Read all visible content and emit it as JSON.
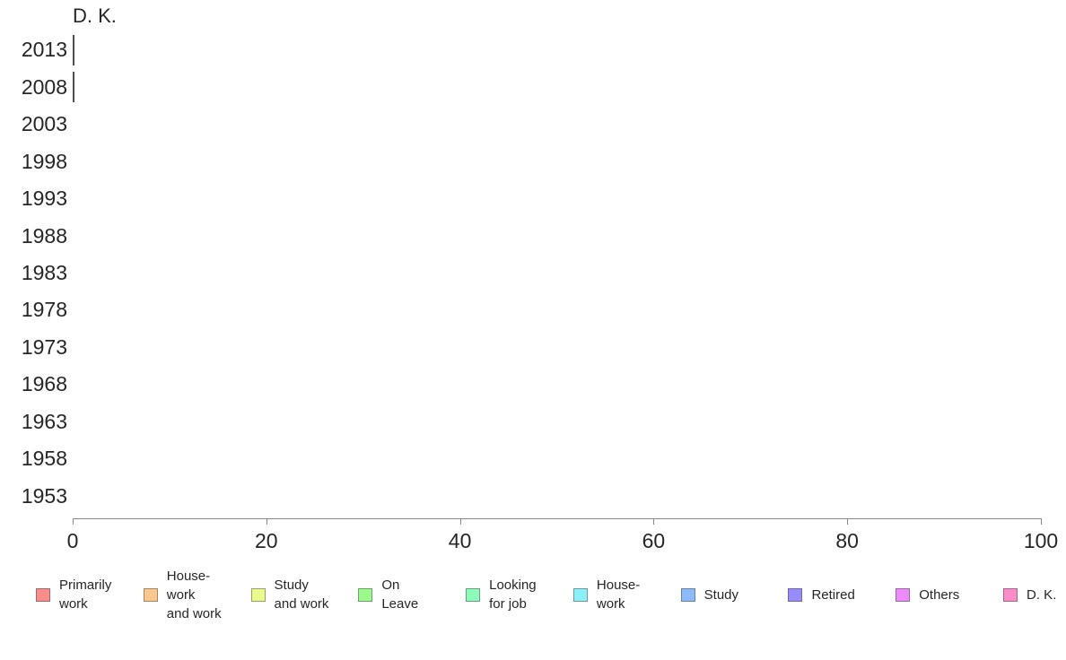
{
  "page": {
    "background": "#ffffff"
  },
  "chart_data": {
    "type": "bar",
    "orientation": "horizontal",
    "title": "D. K.",
    "categories": [
      "2013",
      "2008",
      "2003",
      "1998",
      "1993",
      "1988",
      "1983",
      "1978",
      "1973",
      "1968",
      "1963",
      "1958",
      "1953"
    ],
    "values": [
      0.1,
      0.1,
      0,
      0,
      0,
      0,
      0,
      0,
      0,
      0,
      0,
      0,
      0
    ],
    "xlabel": "",
    "ylabel": "",
    "xlim": [
      0,
      100
    ],
    "xticks": [
      "0",
      "20",
      "40",
      "60",
      "80",
      "100"
    ],
    "grid": false,
    "legend_position": "bottom",
    "bar_fill_color": "#fa8cc8",
    "bar_outline_color": "#4d4d4d",
    "axis_line_color": "#888888",
    "text_color": "#262626",
    "legend": [
      {
        "label": "Primarily work",
        "display": "Primarily\nwork",
        "color": "#fa8c8c"
      },
      {
        "label": "House-work and work",
        "display": "House-\nwork\nand work",
        "color": "#fac88c"
      },
      {
        "label": "Study and work",
        "display": "Study\nand work",
        "color": "#ebfa8c"
      },
      {
        "label": "On Leave",
        "display": "On\nLeave",
        "color": "#9bfa8c"
      },
      {
        "label": "Looking for job",
        "display": "Looking\nfor job",
        "color": "#8cfab9"
      },
      {
        "label": "House-work",
        "display": "House-\nwork",
        "color": "#8cf0fa"
      },
      {
        "label": "Study",
        "display": "Study",
        "color": "#8cbafa"
      },
      {
        "label": "Retired",
        "display": "Retired",
        "color": "#968cfa"
      },
      {
        "label": "Others",
        "display": "Others",
        "color": "#eb8cfa"
      },
      {
        "label": "D. K.",
        "display": "D. K.",
        "color": "#fa8cc8"
      }
    ]
  }
}
